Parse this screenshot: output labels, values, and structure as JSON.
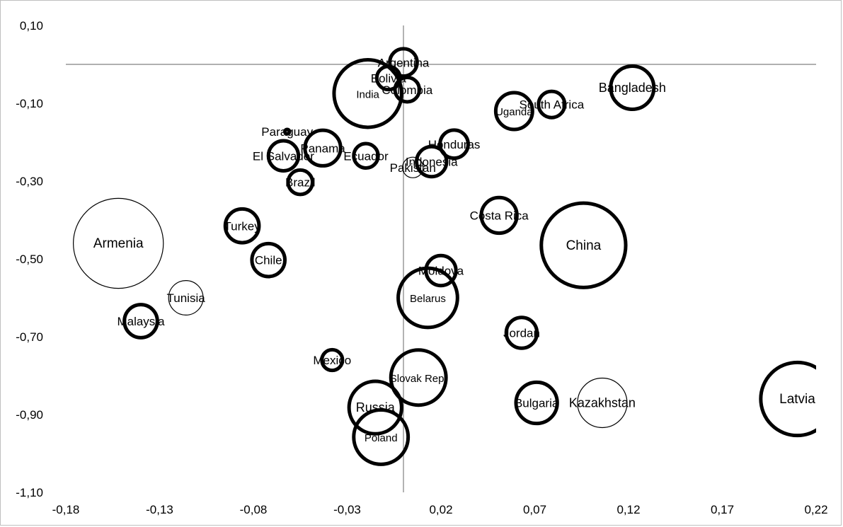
{
  "chart_data": {
    "type": "bubble",
    "title": "",
    "xlabel": "",
    "ylabel": "",
    "xlim": [
      -0.18,
      0.22
    ],
    "ylim": [
      -1.1,
      0.1
    ],
    "xticks": [
      "-0,18",
      "-0,13",
      "-0,08",
      "-0,03",
      "0,02",
      "0,07",
      "0,12",
      "0,17",
      "0,22"
    ],
    "yticks": [
      "0,10",
      "-0,10",
      "-0,30",
      "-0,50",
      "-0,70",
      "-0,90",
      "-1,10"
    ],
    "reference_lines": {
      "x": 0.0,
      "y": 0.0
    },
    "grid": false,
    "legend": "none",
    "points": [
      {
        "label": "Argentina",
        "x": 0.0,
        "y": 0.005,
        "r": 0.0073,
        "stroke": "thick"
      },
      {
        "label": "Bolivia",
        "x": -0.008,
        "y": -0.035,
        "r": 0.0062,
        "stroke": "thick"
      },
      {
        "label": "India",
        "x": -0.019,
        "y": -0.075,
        "r": 0.018,
        "stroke": "thick"
      },
      {
        "label": "Colombia",
        "x": 0.002,
        "y": -0.065,
        "r": 0.0065,
        "stroke": "thick"
      },
      {
        "label": "Uganda",
        "x": 0.059,
        "y": -0.12,
        "r": 0.0098,
        "stroke": "thick"
      },
      {
        "label": "South Africa",
        "x": 0.079,
        "y": -0.103,
        "r": 0.007,
        "stroke": "thick"
      },
      {
        "label": "Bangladesh",
        "x": 0.122,
        "y": -0.06,
        "r": 0.0115,
        "stroke": "thick"
      },
      {
        "label": "Paraguay",
        "x": -0.062,
        "y": -0.173,
        "r": 0.0012,
        "stroke": "thick"
      },
      {
        "label": "Panama",
        "x": -0.043,
        "y": -0.215,
        "r": 0.0095,
        "stroke": "thick"
      },
      {
        "label": "El Salvador",
        "x": -0.064,
        "y": -0.235,
        "r": 0.008,
        "stroke": "thick"
      },
      {
        "label": "Ecuador",
        "x": -0.02,
        "y": -0.235,
        "r": 0.0065,
        "stroke": "thick"
      },
      {
        "label": "Honduras",
        "x": 0.027,
        "y": -0.205,
        "r": 0.0075,
        "stroke": "thick"
      },
      {
        "label": "Indonesia",
        "x": 0.015,
        "y": -0.25,
        "r": 0.008,
        "stroke": "thick"
      },
      {
        "label": "Pakistan",
        "x": 0.005,
        "y": -0.265,
        "r": 0.0055,
        "stroke": "thin"
      },
      {
        "label": "Brazil",
        "x": -0.055,
        "y": -0.303,
        "r": 0.0065,
        "stroke": "thick"
      },
      {
        "label": "Costa Rica",
        "x": 0.051,
        "y": -0.388,
        "r": 0.0095,
        "stroke": "thick"
      },
      {
        "label": "Turkey",
        "x": -0.086,
        "y": -0.415,
        "r": 0.009,
        "stroke": "thick"
      },
      {
        "label": "Armenia",
        "x": -0.152,
        "y": -0.46,
        "r": 0.024,
        "stroke": "thin"
      },
      {
        "label": "China",
        "x": 0.096,
        "y": -0.465,
        "r": 0.0225,
        "stroke": "thick"
      },
      {
        "label": "Chile",
        "x": -0.072,
        "y": -0.503,
        "r": 0.0088,
        "stroke": "thick"
      },
      {
        "label": "Moldova",
        "x": 0.02,
        "y": -0.53,
        "r": 0.008,
        "stroke": "thick"
      },
      {
        "label": "Tunisia",
        "x": -0.116,
        "y": -0.6,
        "r": 0.0092,
        "stroke": "thin"
      },
      {
        "label": "Belarus",
        "x": 0.013,
        "y": -0.6,
        "r": 0.0158,
        "stroke": "thick"
      },
      {
        "label": "Malaysia",
        "x": -0.14,
        "y": -0.66,
        "r": 0.0088,
        "stroke": "thick"
      },
      {
        "label": "Jordan",
        "x": 0.063,
        "y": -0.69,
        "r": 0.0082,
        "stroke": "thick"
      },
      {
        "label": "Mexico",
        "x": -0.038,
        "y": -0.76,
        "r": 0.0055,
        "stroke": "thick"
      },
      {
        "label": "Slovak Rep.",
        "x": 0.008,
        "y": -0.805,
        "r": 0.0147,
        "stroke": "thick"
      },
      {
        "label": "Bulgaria",
        "x": 0.071,
        "y": -0.87,
        "r": 0.011,
        "stroke": "thick"
      },
      {
        "label": "Kazakhstan",
        "x": 0.106,
        "y": -0.87,
        "r": 0.0132,
        "stroke": "thin"
      },
      {
        "label": "Russia",
        "x": -0.015,
        "y": -0.882,
        "r": 0.014,
        "stroke": "thick"
      },
      {
        "label": "Latvia",
        "x": 0.21,
        "y": -0.86,
        "r": 0.0195,
        "stroke": "thick"
      },
      {
        "label": "Poland",
        "x": -0.012,
        "y": -0.958,
        "r": 0.0145,
        "stroke": "thick"
      }
    ]
  }
}
